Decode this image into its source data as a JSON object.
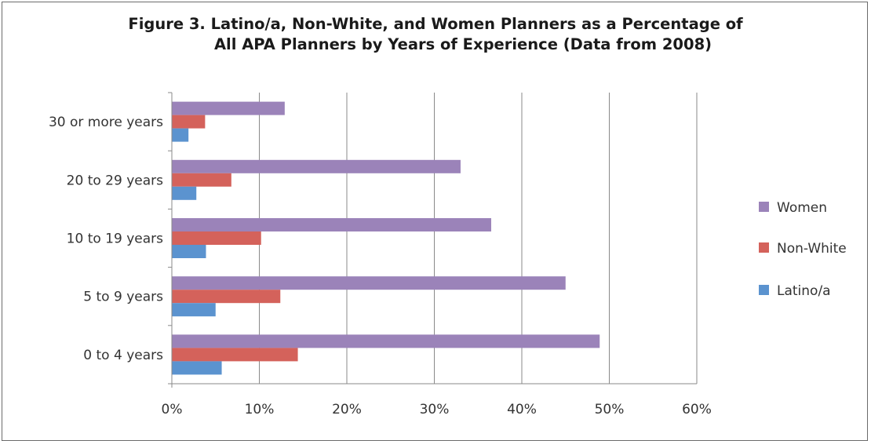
{
  "chart_data": {
    "type": "bar",
    "orientation": "horizontal",
    "title_line1": "Figure 3. Latino/a, Non-White, and Women Planners as a Percentage of",
    "title_line2": "All APA Planners by Years of Experience (Data from 2008)",
    "categories": [
      "0 to 4 years",
      "5 to 9 years",
      "10 to 19 years",
      "20 to 29 years",
      "30 or more years"
    ],
    "series": [
      {
        "name": "Latino/a",
        "color": "#5b93cf",
        "values": [
          5.7,
          5.0,
          3.9,
          2.8,
          1.9
        ]
      },
      {
        "name": "Non-White",
        "color": "#d4625b",
        "values": [
          14.4,
          12.4,
          10.2,
          6.8,
          3.8
        ]
      },
      {
        "name": "Women",
        "color": "#9b83b9",
        "values": [
          48.9,
          45.0,
          36.5,
          33.0,
          12.9
        ]
      }
    ],
    "legend_order": [
      "Women",
      "Non-White",
      "Latino/a"
    ],
    "xlim": [
      0,
      60
    ],
    "x_ticks": [
      "0%",
      "10%",
      "20%",
      "30%",
      "40%",
      "50%",
      "60%"
    ],
    "grid": true,
    "legend_position": "right"
  }
}
